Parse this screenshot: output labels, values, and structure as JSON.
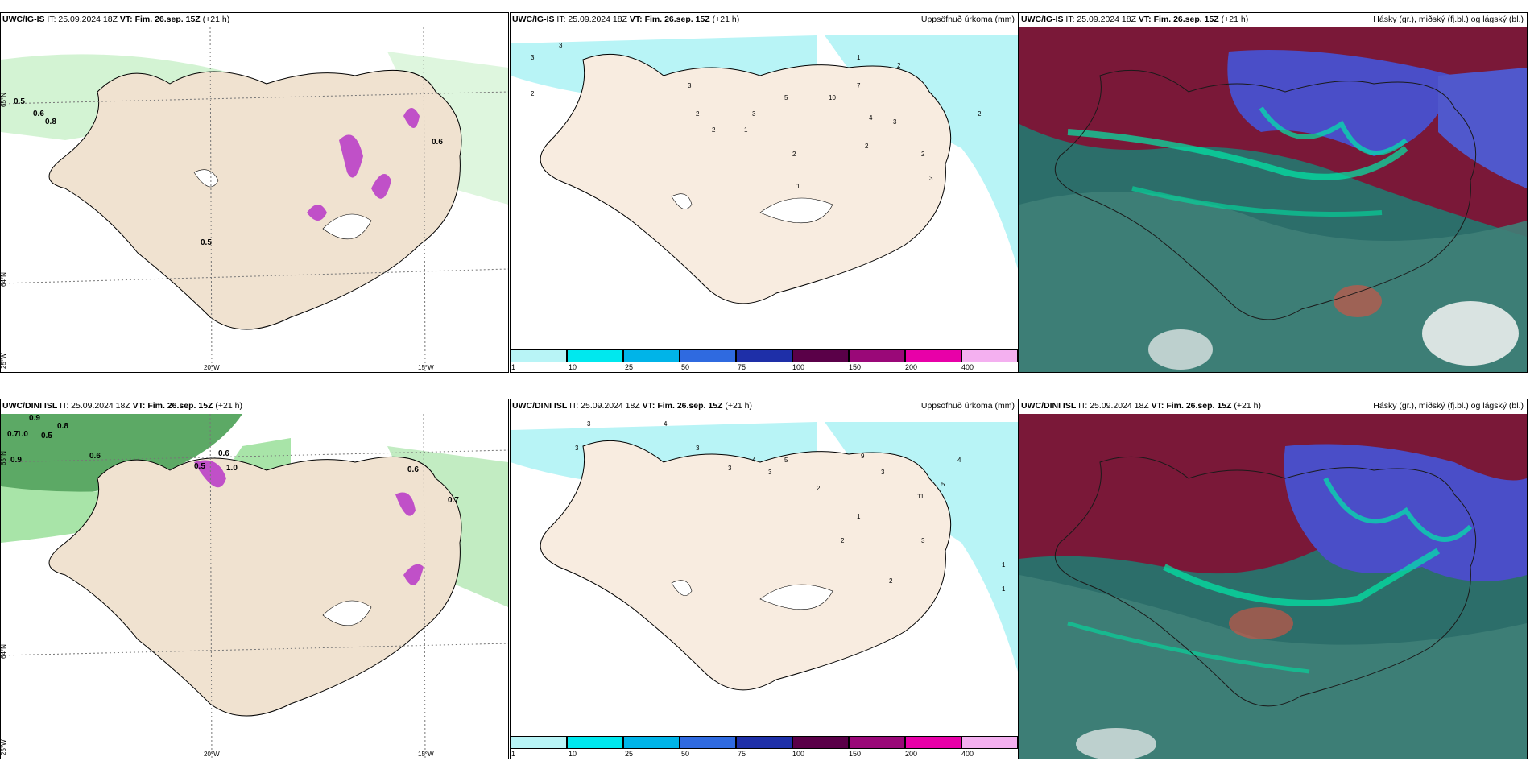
{
  "rows": [
    {
      "panels": [
        {
          "kind": "wind-precip",
          "header": {
            "model": "UWC/IG-IS",
            "it": "IT: 25.09.2024 18Z",
            "vt": "VT: Fim. 26.sep. 15Z",
            "lead": "(+21 h)"
          },
          "values": [
            "0.5",
            "0.6",
            "0.8",
            "0.5",
            "0.6"
          ],
          "ticks": {
            "lat": [
              "65°N",
              "64°N"
            ],
            "lon": [
              "25°W",
              "20°W",
              "15°W"
            ]
          }
        },
        {
          "kind": "accum-precip",
          "header": {
            "model": "UWC/IG-IS",
            "it": "IT: 25.09.2024 18Z",
            "vt": "VT: Fim. 26.sep. 15Z",
            "lead": "(+21 h)"
          },
          "right_title": "Uppsöfnuð úrkoma (mm)",
          "values": [
            "3",
            "3",
            "2",
            "3",
            "2",
            "1",
            "5",
            "3",
            "2",
            "10",
            "7",
            "1",
            "2",
            "3",
            "2",
            "4",
            "2",
            "3",
            "2",
            "2",
            "1"
          ]
        },
        {
          "kind": "clouds",
          "header": {
            "model": "UWC/IG-IS",
            "it": "IT: 25.09.2024 18Z",
            "vt": "VT: Fim. 26.sep. 15Z",
            "lead": "(+21 h)"
          },
          "right_title": "Hásky (gr.), miðský (fj.bl.) og lágský (bl.)"
        }
      ]
    },
    {
      "panels": [
        {
          "kind": "wind-precip",
          "header": {
            "model": "UWC/DINI ISL",
            "it": "IT: 25.09.2024 18Z",
            "vt": "VT: Fim. 26.sep. 15Z",
            "lead": "(+21 h)"
          },
          "values": [
            "0.9",
            "0.7",
            "1.0",
            "0.8",
            "0.5",
            "0.6",
            "0.9",
            "0.5",
            "0.6",
            "1.0",
            "0.6",
            "0.7"
          ],
          "ticks": {
            "lat": [
              "65°N",
              "64°N"
            ],
            "lon": [
              "25°W",
              "20°W",
              "15°W"
            ]
          }
        },
        {
          "kind": "accum-precip",
          "header": {
            "model": "UWC/DINI ISL",
            "it": "IT: 25.09.2024 18Z",
            "vt": "VT: Fim. 26.sep. 15Z",
            "lead": "(+21 h)"
          },
          "right_title": "Uppsöfnuð úrkoma (mm)",
          "values": [
            "3",
            "3",
            "4",
            "3",
            "3",
            "4",
            "3",
            "5",
            "2",
            "9",
            "3",
            "11",
            "4",
            "5",
            "1",
            "2",
            "3",
            "2",
            "1",
            "1"
          ]
        },
        {
          "kind": "clouds",
          "header": {
            "model": "UWC/DINI ISL",
            "it": "IT: 25.09.2024 18Z",
            "vt": "VT: Fim. 26.sep. 15Z",
            "lead": "(+21 h)"
          },
          "right_title": "Hásky (gr.), miðský (fj.bl.) og lágský (bl.)"
        }
      ]
    }
  ],
  "colorbar": {
    "labels": [
      "1",
      "10",
      "25",
      "50",
      "75",
      "100",
      "150",
      "200",
      "400"
    ],
    "colors": [
      "#b8f4f6",
      "#00e8ee",
      "#00b4e8",
      "#2f6ae0",
      "#1e2fa8",
      "#5a0048",
      "#9a0878",
      "#e800a8",
      "#f4b0f0"
    ]
  },
  "colors": {
    "land": "#f0e2d0",
    "sea_light": "#c8f0c8",
    "accum_sea": "#b8f4f6",
    "cloud_high": "#7a1838",
    "cloud_mid": "#4a4ec8",
    "cloud_low": "#2c6e6a"
  }
}
